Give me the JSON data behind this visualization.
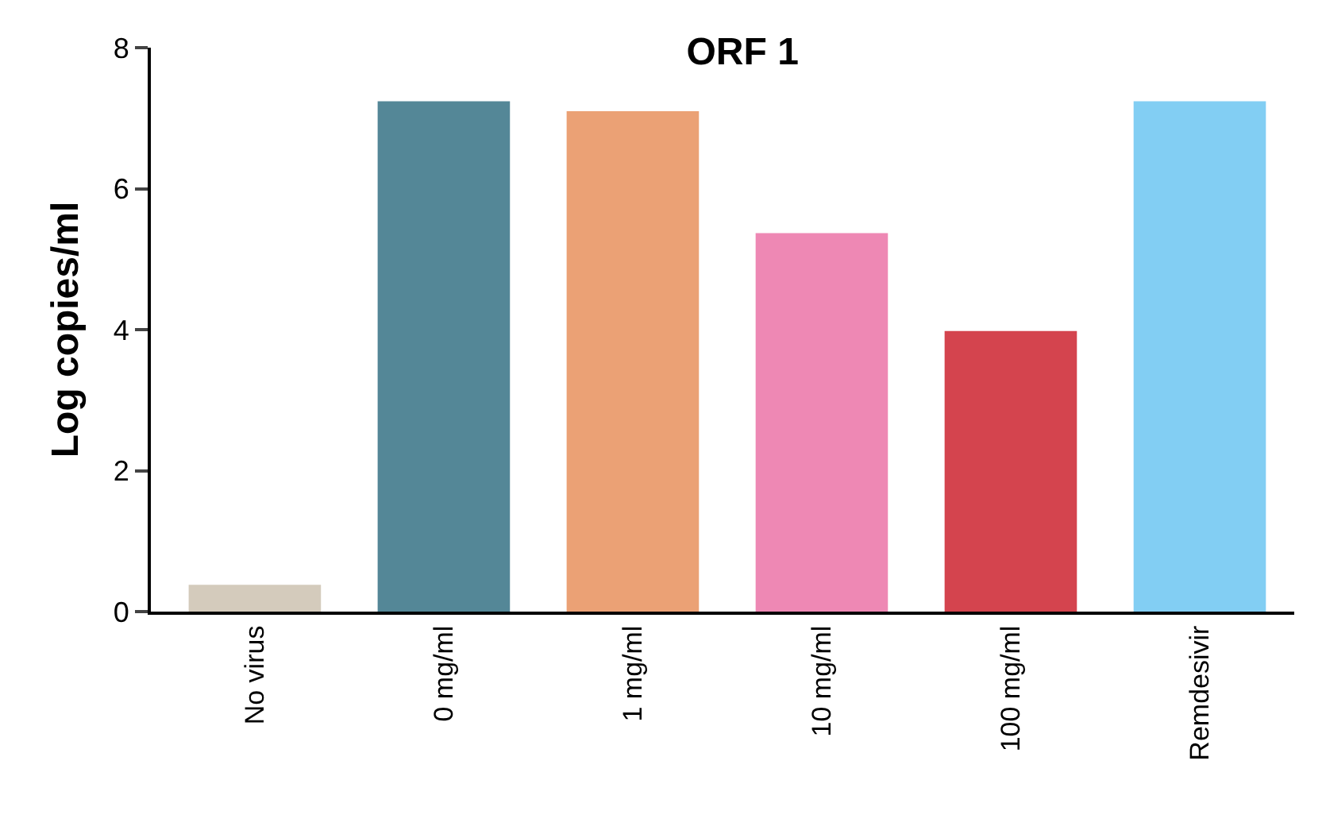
{
  "chart_data": {
    "type": "bar",
    "title": "ORF 1",
    "ylabel": "Log copies/ml",
    "categories": [
      "No virus",
      "0 mg/ml",
      "1 mg/ml",
      "10 mg/ml",
      "100 mg/ml",
      "Remdesivir"
    ],
    "values": [
      0.38,
      7.24,
      7.1,
      5.37,
      3.98,
      7.24
    ],
    "colors": [
      "#d4cbbc",
      "#548797",
      "#eba175",
      "#ee88b4",
      "#d4444e",
      "#82cef3"
    ],
    "ylim": [
      0,
      8
    ],
    "yticks": [
      0,
      2,
      4,
      6,
      8
    ]
  }
}
